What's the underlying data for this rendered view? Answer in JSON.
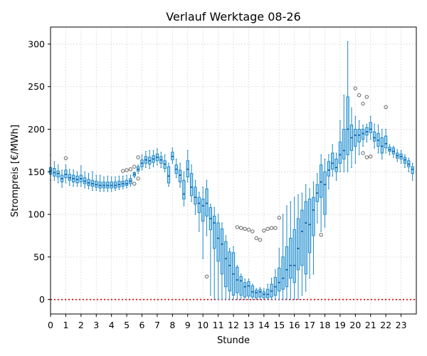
{
  "chart_data": {
    "type": "box",
    "title": "Verlauf Werktage 08-26",
    "xlabel": "Stunde",
    "ylabel": "Strompreis [€/MWh]",
    "xlim": [
      0,
      24
    ],
    "ylim": [
      -17,
      320
    ],
    "xticks": [
      0,
      1,
      2,
      3,
      4,
      5,
      6,
      7,
      8,
      9,
      10,
      11,
      12,
      13,
      14,
      15,
      16,
      17,
      18,
      19,
      20,
      21,
      22,
      23
    ],
    "yticks": [
      0,
      50,
      100,
      150,
      200,
      250,
      300
    ],
    "grid": true,
    "reference_line": {
      "y": 0,
      "color": "#e00000",
      "style": "dotted"
    },
    "box_step": 0.25,
    "boxes": [
      {
        "x": 0.0,
        "whislo": 140,
        "q1": 147,
        "med": 151,
        "q3": 155,
        "whishi": 170,
        "fliers": []
      },
      {
        "x": 0.25,
        "whislo": 140,
        "q1": 145,
        "med": 149,
        "q3": 154,
        "whishi": 162,
        "fliers": []
      },
      {
        "x": 0.5,
        "whislo": 137,
        "q1": 144,
        "med": 148,
        "q3": 151,
        "whishi": 158,
        "fliers": []
      },
      {
        "x": 0.75,
        "whislo": 132,
        "q1": 138,
        "med": 142,
        "q3": 146,
        "whishi": 152,
        "fliers": []
      },
      {
        "x": 1.0,
        "whislo": 137,
        "q1": 143,
        "med": 147,
        "q3": 152,
        "whishi": 158,
        "fliers": [
          166
        ]
      },
      {
        "x": 1.25,
        "whislo": 134,
        "q1": 140,
        "med": 143,
        "q3": 147,
        "whishi": 153,
        "fliers": []
      },
      {
        "x": 1.5,
        "whislo": 133,
        "q1": 138,
        "med": 142,
        "q3": 146,
        "whishi": 152,
        "fliers": []
      },
      {
        "x": 1.75,
        "whislo": 133,
        "q1": 137,
        "med": 141,
        "q3": 145,
        "whishi": 150,
        "fliers": []
      },
      {
        "x": 2.0,
        "whislo": 133,
        "q1": 138,
        "med": 142,
        "q3": 146,
        "whishi": 157,
        "fliers": []
      },
      {
        "x": 2.25,
        "whislo": 131,
        "q1": 136,
        "med": 139,
        "q3": 143,
        "whishi": 150,
        "fliers": []
      },
      {
        "x": 2.5,
        "whislo": 130,
        "q1": 134,
        "med": 137,
        "q3": 141,
        "whishi": 148,
        "fliers": []
      },
      {
        "x": 2.75,
        "whislo": 128,
        "q1": 133,
        "med": 136,
        "q3": 140,
        "whishi": 150,
        "fliers": []
      },
      {
        "x": 3.0,
        "whislo": 128,
        "q1": 132,
        "med": 135,
        "q3": 139,
        "whishi": 146,
        "fliers": []
      },
      {
        "x": 3.25,
        "whislo": 127,
        "q1": 131,
        "med": 134,
        "q3": 138,
        "whishi": 146,
        "fliers": []
      },
      {
        "x": 3.5,
        "whislo": 127,
        "q1": 131,
        "med": 134,
        "q3": 138,
        "whishi": 144,
        "fliers": []
      },
      {
        "x": 3.75,
        "whislo": 127,
        "q1": 131,
        "med": 134,
        "q3": 138,
        "whishi": 145,
        "fliers": []
      },
      {
        "x": 4.0,
        "whislo": 127,
        "q1": 131,
        "med": 134,
        "q3": 138,
        "whishi": 144,
        "fliers": []
      },
      {
        "x": 4.25,
        "whislo": 128,
        "q1": 131,
        "med": 134,
        "q3": 138,
        "whishi": 144,
        "fliers": []
      },
      {
        "x": 4.5,
        "whislo": 129,
        "q1": 132,
        "med": 135,
        "q3": 139,
        "whishi": 145,
        "fliers": []
      },
      {
        "x": 4.75,
        "whislo": 130,
        "q1": 133,
        "med": 136,
        "q3": 139,
        "whishi": 145,
        "fliers": [
          151
        ]
      },
      {
        "x": 5.0,
        "whislo": 131,
        "q1": 134,
        "med": 136,
        "q3": 140,
        "whishi": 146,
        "fliers": [
          152
        ]
      },
      {
        "x": 5.25,
        "whislo": 133,
        "q1": 136,
        "med": 139,
        "q3": 142,
        "whishi": 146,
        "fliers": [
          153
        ]
      },
      {
        "x": 5.5,
        "whislo": 143,
        "q1": 145,
        "med": 147,
        "q3": 149,
        "whishi": 150,
        "fliers": [
          136,
          156
        ]
      },
      {
        "x": 5.75,
        "whislo": 148,
        "q1": 151,
        "med": 153,
        "q3": 156,
        "whishi": 158,
        "fliers": [
          142,
          167
        ]
      },
      {
        "x": 6.0,
        "whislo": 152,
        "q1": 156,
        "med": 160,
        "q3": 164,
        "whishi": 170,
        "fliers": []
      },
      {
        "x": 6.25,
        "whislo": 155,
        "q1": 160,
        "med": 164,
        "q3": 168,
        "whishi": 174,
        "fliers": []
      },
      {
        "x": 6.5,
        "whislo": 154,
        "q1": 159,
        "med": 163,
        "q3": 167,
        "whishi": 175,
        "fliers": []
      },
      {
        "x": 6.75,
        "whislo": 156,
        "q1": 161,
        "med": 165,
        "q3": 169,
        "whishi": 175,
        "fliers": []
      },
      {
        "x": 7.0,
        "whislo": 158,
        "q1": 163,
        "med": 167,
        "q3": 171,
        "whishi": 177,
        "fliers": []
      },
      {
        "x": 7.25,
        "whislo": 155,
        "q1": 160,
        "med": 164,
        "q3": 168,
        "whishi": 173,
        "fliers": []
      },
      {
        "x": 7.5,
        "whislo": 150,
        "q1": 154,
        "med": 159,
        "q3": 163,
        "whishi": 170,
        "fliers": []
      },
      {
        "x": 7.75,
        "whislo": 133,
        "q1": 137,
        "med": 145,
        "q3": 156,
        "whishi": 160,
        "fliers": []
      },
      {
        "x": 8.0,
        "whislo": 160,
        "q1": 164,
        "med": 168,
        "q3": 173,
        "whishi": 178,
        "fliers": []
      },
      {
        "x": 8.25,
        "whislo": 143,
        "q1": 148,
        "med": 153,
        "q3": 158,
        "whishi": 165,
        "fliers": []
      },
      {
        "x": 8.5,
        "whislo": 132,
        "q1": 138,
        "med": 146,
        "q3": 152,
        "whishi": 160,
        "fliers": []
      },
      {
        "x": 8.75,
        "whislo": 110,
        "q1": 118,
        "med": 124,
        "q3": 140,
        "whishi": 150,
        "fliers": []
      },
      {
        "x": 9.0,
        "whislo": 138,
        "q1": 144,
        "med": 153,
        "q3": 163,
        "whishi": 175,
        "fliers": []
      },
      {
        "x": 9.25,
        "whislo": 115,
        "q1": 122,
        "med": 132,
        "q3": 148,
        "whishi": 158,
        "fliers": []
      },
      {
        "x": 9.5,
        "whislo": 100,
        "q1": 112,
        "med": 120,
        "q3": 132,
        "whishi": 140,
        "fliers": []
      },
      {
        "x": 9.75,
        "whislo": 80,
        "q1": 102,
        "med": 113,
        "q3": 120,
        "whishi": 126,
        "fliers": []
      },
      {
        "x": 10.0,
        "whislo": 48,
        "q1": 92,
        "med": 110,
        "q3": 118,
        "whishi": 132,
        "fliers": []
      },
      {
        "x": 10.25,
        "whislo": 75,
        "q1": 98,
        "med": 113,
        "q3": 130,
        "whishi": 140,
        "fliers": [
          27
        ]
      },
      {
        "x": 10.5,
        "whislo": 5,
        "q1": 82,
        "med": 95,
        "q3": 108,
        "whishi": 112,
        "fliers": []
      },
      {
        "x": 10.75,
        "whislo": 0,
        "q1": 60,
        "med": 90,
        "q3": 98,
        "whishi": 108,
        "fliers": []
      },
      {
        "x": 11.0,
        "whislo": 0,
        "q1": 45,
        "med": 72,
        "q3": 90,
        "whishi": 100,
        "fliers": []
      },
      {
        "x": 11.25,
        "whislo": 0,
        "q1": 30,
        "med": 65,
        "q3": 83,
        "whishi": 90,
        "fliers": []
      },
      {
        "x": 11.5,
        "whislo": 0,
        "q1": 15,
        "med": 48,
        "q3": 68,
        "whishi": 75,
        "fliers": []
      },
      {
        "x": 11.75,
        "whislo": 0,
        "q1": 10,
        "med": 40,
        "q3": 56,
        "whishi": 60,
        "fliers": []
      },
      {
        "x": 12.0,
        "whislo": 0,
        "q1": 5,
        "med": 30,
        "q3": 55,
        "whishi": 62,
        "fliers": []
      },
      {
        "x": 12.25,
        "whislo": 0,
        "q1": 8,
        "med": 23,
        "q3": 38,
        "whishi": 40,
        "fliers": [
          85
        ]
      },
      {
        "x": 12.5,
        "whislo": 0,
        "q1": 5,
        "med": 22,
        "q3": 27,
        "whishi": 30,
        "fliers": [
          84
        ]
      },
      {
        "x": 12.75,
        "whislo": 0,
        "q1": 3,
        "med": 15,
        "q3": 20,
        "whishi": 24,
        "fliers": [
          83
        ]
      },
      {
        "x": 13.0,
        "whislo": 0,
        "q1": 4,
        "med": 16,
        "q3": 21,
        "whishi": 24,
        "fliers": [
          82
        ]
      },
      {
        "x": 13.25,
        "whislo": 0,
        "q1": 3,
        "med": 9,
        "q3": 16,
        "whishi": 18,
        "fliers": [
          80
        ]
      },
      {
        "x": 13.5,
        "whislo": 0,
        "q1": 2,
        "med": 8,
        "q3": 11,
        "whishi": 13,
        "fliers": [
          72
        ]
      },
      {
        "x": 13.75,
        "whislo": 0,
        "q1": 3,
        "med": 9,
        "q3": 12,
        "whishi": 14,
        "fliers": [
          70
        ]
      },
      {
        "x": 14.0,
        "whislo": 0,
        "q1": 2,
        "med": 6,
        "q3": 9,
        "whishi": 13,
        "fliers": [
          81
        ]
      },
      {
        "x": 14.25,
        "whislo": 0,
        "q1": 2,
        "med": 6,
        "q3": 12,
        "whishi": 18,
        "fliers": [
          83
        ]
      },
      {
        "x": 14.5,
        "whislo": 0,
        "q1": 3,
        "med": 10,
        "q3": 18,
        "whishi": 25,
        "fliers": [
          84
        ]
      },
      {
        "x": 14.75,
        "whislo": 0,
        "q1": 5,
        "med": 15,
        "q3": 26,
        "whishi": 35,
        "fliers": [
          84
        ]
      },
      {
        "x": 15.0,
        "whislo": 0,
        "q1": 10,
        "med": 20,
        "q3": 37,
        "whishi": 60,
        "fliers": [
          96
        ]
      },
      {
        "x": 15.25,
        "whislo": 0,
        "q1": 12,
        "med": 25,
        "q3": 50,
        "whishi": 100,
        "fliers": []
      },
      {
        "x": 15.5,
        "whislo": 0,
        "q1": 15,
        "med": 35,
        "q3": 62,
        "whishi": 110,
        "fliers": []
      },
      {
        "x": 15.75,
        "whislo": 0,
        "q1": 25,
        "med": 40,
        "q3": 72,
        "whishi": 115,
        "fliers": []
      },
      {
        "x": 16.0,
        "whislo": 0,
        "q1": 20,
        "med": 40,
        "q3": 82,
        "whishi": 120,
        "fliers": []
      },
      {
        "x": 16.25,
        "whislo": 0,
        "q1": 35,
        "med": 60,
        "q3": 95,
        "whishi": 123,
        "fliers": []
      },
      {
        "x": 16.5,
        "whislo": 5,
        "q1": 40,
        "med": 80,
        "q3": 105,
        "whishi": 125,
        "fliers": []
      },
      {
        "x": 16.75,
        "whislo": 10,
        "q1": 30,
        "med": 90,
        "q3": 115,
        "whishi": 135,
        "fliers": []
      },
      {
        "x": 17.0,
        "whislo": 25,
        "q1": 55,
        "med": 88,
        "q3": 118,
        "whishi": 130,
        "fliers": []
      },
      {
        "x": 17.25,
        "whislo": 30,
        "q1": 75,
        "med": 105,
        "q3": 120,
        "whishi": 138,
        "fliers": []
      },
      {
        "x": 17.5,
        "whislo": 90,
        "q1": 115,
        "med": 125,
        "q3": 135,
        "whishi": 148,
        "fliers": []
      },
      {
        "x": 17.75,
        "whislo": 80,
        "q1": 120,
        "med": 138,
        "q3": 158,
        "whishi": 170,
        "fliers": [
          76
        ]
      },
      {
        "x": 18.0,
        "whislo": 85,
        "q1": 100,
        "med": 135,
        "q3": 150,
        "whishi": 165,
        "fliers": []
      },
      {
        "x": 18.25,
        "whislo": 130,
        "q1": 145,
        "med": 152,
        "q3": 162,
        "whishi": 170,
        "fliers": []
      },
      {
        "x": 18.5,
        "whislo": 145,
        "q1": 153,
        "med": 160,
        "q3": 172,
        "whishi": 182,
        "fliers": []
      },
      {
        "x": 18.75,
        "whislo": 140,
        "q1": 150,
        "med": 155,
        "q3": 165,
        "whishi": 172,
        "fliers": []
      },
      {
        "x": 19.0,
        "whislo": 150,
        "q1": 160,
        "med": 170,
        "q3": 185,
        "whishi": 210,
        "fliers": []
      },
      {
        "x": 19.25,
        "whislo": 150,
        "q1": 165,
        "med": 175,
        "q3": 200,
        "whishi": 240,
        "fliers": []
      },
      {
        "x": 19.5,
        "whislo": 150,
        "q1": 170,
        "med": 200,
        "q3": 238,
        "whishi": 303,
        "fliers": []
      },
      {
        "x": 19.75,
        "whislo": 155,
        "q1": 175,
        "med": 190,
        "q3": 205,
        "whishi": 225,
        "fliers": []
      },
      {
        "x": 20.0,
        "whislo": 160,
        "q1": 180,
        "med": 193,
        "q3": 200,
        "whishi": 215,
        "fliers": [
          248
        ]
      },
      {
        "x": 20.25,
        "whislo": 170,
        "q1": 185,
        "med": 193,
        "q3": 200,
        "whishi": 210,
        "fliers": [
          240
        ]
      },
      {
        "x": 20.5,
        "whislo": 180,
        "q1": 188,
        "med": 195,
        "q3": 200,
        "whishi": 205,
        "fliers": [
          230,
          172
        ]
      },
      {
        "x": 20.75,
        "whislo": 185,
        "q1": 193,
        "med": 197,
        "q3": 202,
        "whishi": 206,
        "fliers": [
          238,
          167
        ]
      },
      {
        "x": 21.0,
        "whislo": 188,
        "q1": 196,
        "med": 200,
        "q3": 208,
        "whishi": 215,
        "fliers": [
          168
        ]
      },
      {
        "x": 21.25,
        "whislo": 178,
        "q1": 186,
        "med": 190,
        "q3": 197,
        "whishi": 206,
        "fliers": []
      },
      {
        "x": 21.5,
        "whislo": 172,
        "q1": 180,
        "med": 187,
        "q3": 195,
        "whishi": 205,
        "fliers": []
      },
      {
        "x": 21.75,
        "whislo": 165,
        "q1": 172,
        "med": 180,
        "q3": 190,
        "whishi": 200,
        "fliers": []
      },
      {
        "x": 22.0,
        "whislo": 172,
        "q1": 178,
        "med": 183,
        "q3": 192,
        "whishi": 200,
        "fliers": [
          226
        ]
      },
      {
        "x": 22.25,
        "whislo": 170,
        "q1": 174,
        "med": 176,
        "q3": 179,
        "whishi": 182,
        "fliers": []
      },
      {
        "x": 22.5,
        "whislo": 167,
        "q1": 171,
        "med": 174,
        "q3": 178,
        "whishi": 180,
        "fliers": []
      },
      {
        "x": 22.75,
        "whislo": 162,
        "q1": 166,
        "med": 169,
        "q3": 172,
        "whishi": 176,
        "fliers": []
      },
      {
        "x": 23.0,
        "whislo": 160,
        "q1": 165,
        "med": 168,
        "q3": 171,
        "whishi": 175,
        "fliers": []
      },
      {
        "x": 23.25,
        "whislo": 155,
        "q1": 160,
        "med": 164,
        "q3": 167,
        "whishi": 170,
        "fliers": []
      },
      {
        "x": 23.5,
        "whislo": 150,
        "q1": 156,
        "med": 159,
        "q3": 163,
        "whishi": 166,
        "fliers": []
      },
      {
        "x": 23.75,
        "whislo": 140,
        "q1": 148,
        "med": 153,
        "q3": 156,
        "whishi": 160,
        "fliers": []
      }
    ]
  }
}
